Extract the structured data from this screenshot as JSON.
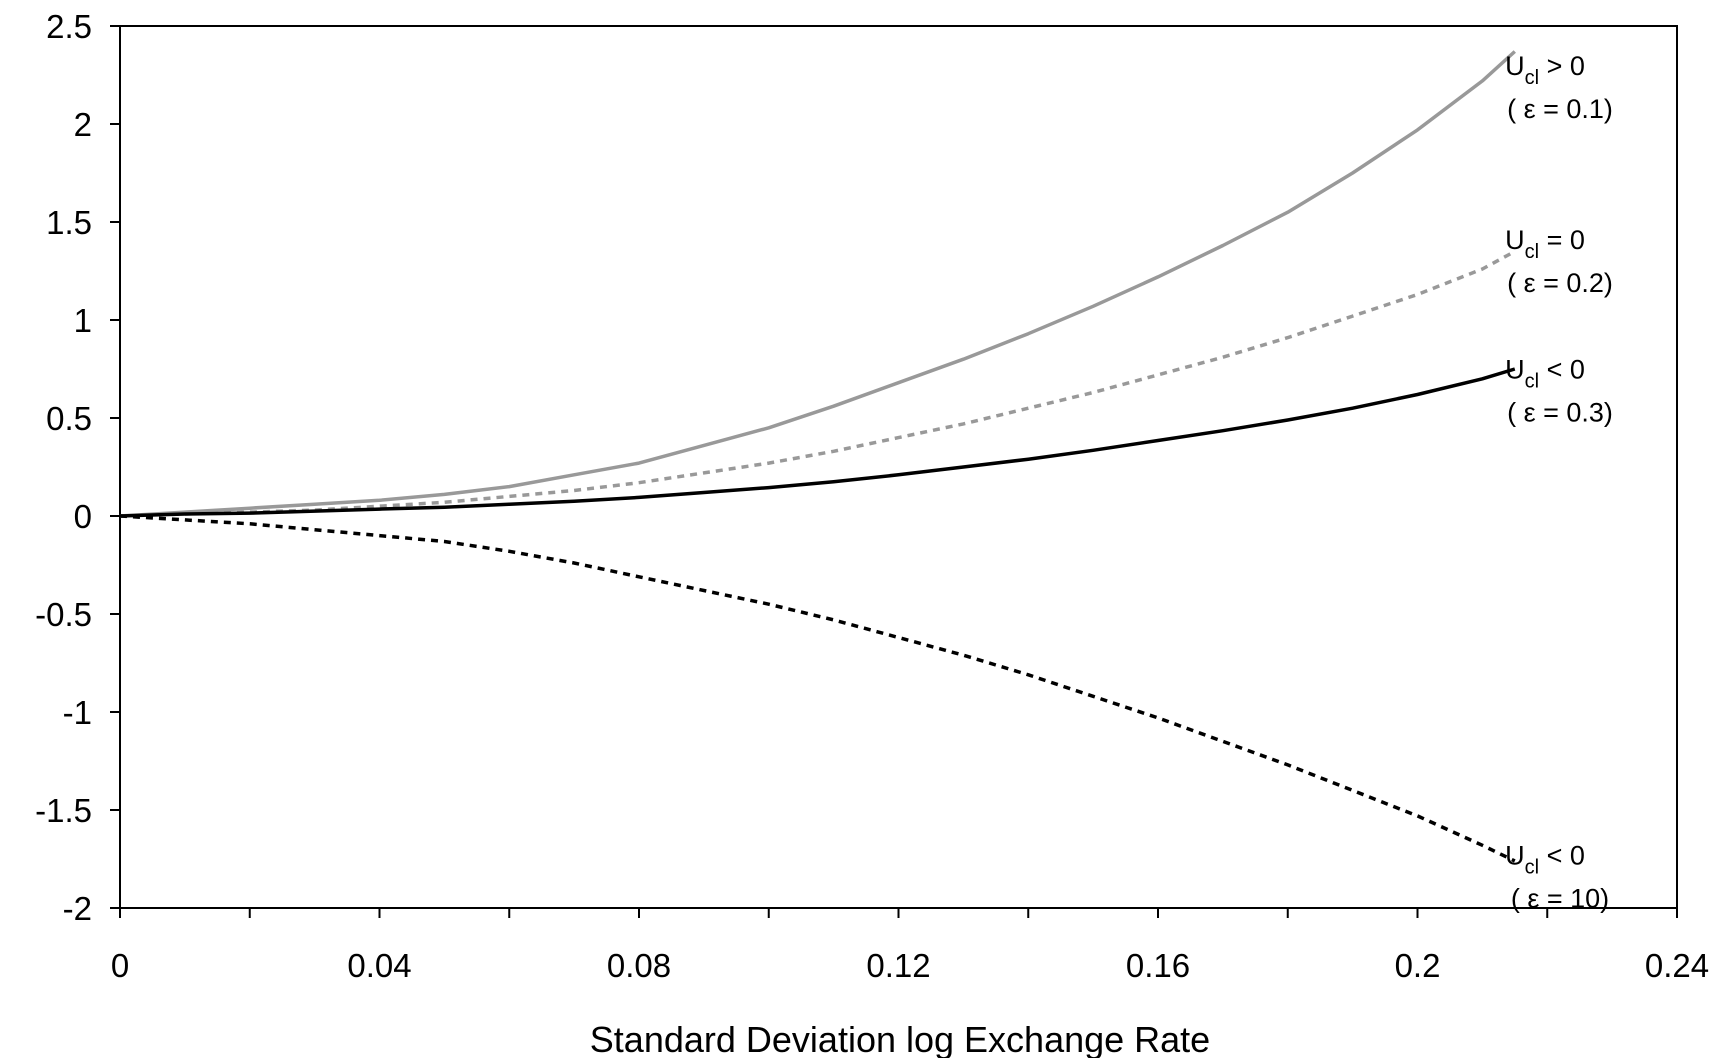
{
  "chart_data": {
    "type": "line",
    "title": "",
    "xlabel": "Standard Deviation log Exchange Rate",
    "ylabel": "",
    "xlim": [
      0,
      0.24
    ],
    "ylim": [
      -2,
      2.5
    ],
    "x_ticks": [
      "0",
      "0.04",
      "0.08",
      "0.12",
      "0.16",
      "0.2",
      "0.24"
    ],
    "x_tick_values": [
      0,
      0.04,
      0.08,
      0.12,
      0.16,
      0.2,
      0.24
    ],
    "x_minor_step": 0.02,
    "y_ticks": [
      "2.5",
      "2",
      "1.5",
      "1",
      "0.5",
      "0",
      "-0.5",
      "-1",
      "-1.5",
      "-2"
    ],
    "y_tick_values": [
      2.5,
      2,
      1.5,
      1,
      0.5,
      0,
      -0.5,
      -1,
      -1.5,
      -2
    ],
    "grid": false,
    "legend": "none",
    "series": [
      {
        "color": "#999999",
        "dash": "solid",
        "x": [
          0,
          0.01,
          0.02,
          0.03,
          0.04,
          0.05,
          0.06,
          0.07,
          0.08,
          0.09,
          0.1,
          0.11,
          0.12,
          0.13,
          0.14,
          0.15,
          0.16,
          0.17,
          0.18,
          0.19,
          0.2,
          0.21,
          0.215
        ],
        "y": [
          0,
          0.02,
          0.04,
          0.06,
          0.08,
          0.11,
          0.15,
          0.21,
          0.27,
          0.36,
          0.45,
          0.56,
          0.68,
          0.8,
          0.93,
          1.07,
          1.22,
          1.38,
          1.55,
          1.75,
          1.97,
          2.22,
          2.37
        ]
      },
      {
        "color": "#999999",
        "dash": "dotted",
        "x": [
          0,
          0.01,
          0.02,
          0.03,
          0.04,
          0.05,
          0.06,
          0.07,
          0.08,
          0.09,
          0.1,
          0.11,
          0.12,
          0.13,
          0.14,
          0.15,
          0.16,
          0.17,
          0.18,
          0.19,
          0.2,
          0.21,
          0.215
        ],
        "y": [
          0,
          0.01,
          0.02,
          0.03,
          0.05,
          0.07,
          0.1,
          0.13,
          0.17,
          0.22,
          0.27,
          0.33,
          0.4,
          0.47,
          0.55,
          0.63,
          0.72,
          0.81,
          0.91,
          1.02,
          1.13,
          1.26,
          1.35
        ]
      },
      {
        "color": "#000000",
        "dash": "solid",
        "x": [
          0,
          0.01,
          0.02,
          0.03,
          0.04,
          0.05,
          0.06,
          0.07,
          0.08,
          0.09,
          0.1,
          0.11,
          0.12,
          0.13,
          0.14,
          0.15,
          0.16,
          0.17,
          0.18,
          0.19,
          0.2,
          0.21,
          0.215
        ],
        "y": [
          0,
          0.01,
          0.015,
          0.025,
          0.035,
          0.045,
          0.06,
          0.075,
          0.095,
          0.12,
          0.145,
          0.175,
          0.21,
          0.25,
          0.29,
          0.335,
          0.385,
          0.435,
          0.49,
          0.55,
          0.62,
          0.7,
          0.75
        ]
      },
      {
        "color": "#000000",
        "dash": "dotted",
        "x": [
          0,
          0.01,
          0.02,
          0.03,
          0.04,
          0.05,
          0.06,
          0.07,
          0.08,
          0.09,
          0.1,
          0.11,
          0.12,
          0.13,
          0.14,
          0.15,
          0.16,
          0.17,
          0.18,
          0.19,
          0.2,
          0.21,
          0.215
        ],
        "y": [
          0,
          -0.02,
          -0.04,
          -0.07,
          -0.1,
          -0.13,
          -0.18,
          -0.24,
          -0.31,
          -0.38,
          -0.45,
          -0.53,
          -0.62,
          -0.71,
          -0.81,
          -0.92,
          -1.03,
          -1.15,
          -1.27,
          -1.4,
          -1.53,
          -1.68,
          -1.76
        ]
      }
    ],
    "annotations": [
      {
        "main": "U",
        "sub": "cl",
        "rest": " > 0",
        "param": "( ε = 0.1)",
        "y": 2.2
      },
      {
        "main": "U",
        "sub": "cl",
        "rest": " = 0",
        "param": "( ε = 0.2)",
        "y": 1.31
      },
      {
        "main": "U",
        "sub": "cl",
        "rest": " < 0",
        "param": "( ε = 0.3)",
        "y": 0.65
      },
      {
        "main": "U",
        "sub": "cl",
        "rest": " < 0",
        "param": "( ε = 10)",
        "y": -1.83
      }
    ]
  }
}
